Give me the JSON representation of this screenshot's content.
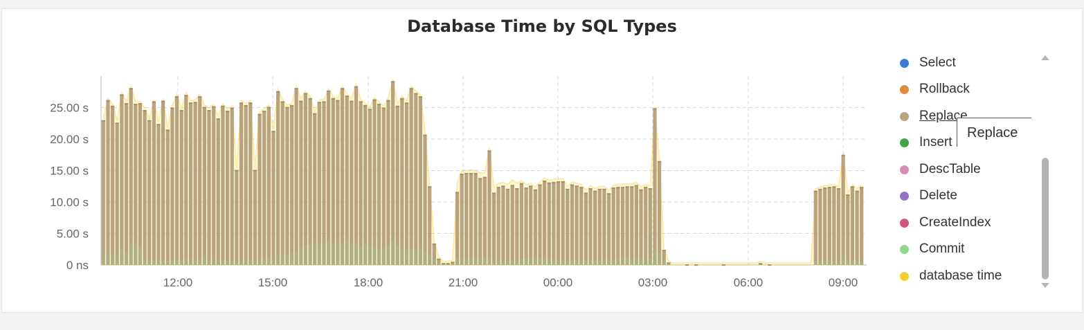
{
  "chart_data": {
    "type": "bar",
    "title": "Database Time by SQL Types",
    "x_tick_labels": [
      "12:00",
      "15:00",
      "18:00",
      "21:00",
      "00:00",
      "03:00",
      "06:00",
      "09:00"
    ],
    "y_tick_labels": [
      "0 ns",
      "5.00 s",
      "10.00 s",
      "15.00 s",
      "20.00 s",
      "25.00 s"
    ],
    "ylim": [
      0,
      30
    ],
    "grid": true,
    "legend_position": "right",
    "series": [
      {
        "name": "Select",
        "color": "#3a7bd5"
      },
      {
        "name": "Rollback",
        "color": "#e08a3c"
      },
      {
        "name": "Replace",
        "color": "#b9a27e"
      },
      {
        "name": "Insert",
        "color": "#44a544"
      },
      {
        "name": "DescTable",
        "color": "#d58fb7"
      },
      {
        "name": "Delete",
        "color": "#9473c2"
      },
      {
        "name": "CreateIndex",
        "color": "#d2557a"
      },
      {
        "name": "Commit",
        "color": "#8fd98f"
      },
      {
        "name": "database time",
        "color": "#f2d12e"
      }
    ],
    "replace_values": [
      23.0,
      26.2,
      25.3,
      22.6,
      27.1,
      25.7,
      28.1,
      25.6,
      25.7,
      24.6,
      23.0,
      26.0,
      22.4,
      26.1,
      21.5,
      25.0,
      26.8,
      24.6,
      27.0,
      25.8,
      25.9,
      26.8,
      25.1,
      24.6,
      25.2,
      23.3,
      25.3,
      24.5,
      25.0,
      15.1,
      25.8,
      25.4,
      25.8,
      15.1,
      24.0,
      24.5,
      25.1,
      21.3,
      27.6,
      26.0,
      25.1,
      25.4,
      28.1,
      26.1,
      27.3,
      26.5,
      24.1,
      25.9,
      26.0,
      27.7,
      26.5,
      26.2,
      28.1,
      26.9,
      26.1,
      28.4,
      26.0,
      25.4,
      24.8,
      26.3,
      25.6,
      25.0,
      26.2,
      29.2,
      25.3,
      26.5,
      25.8,
      28.1,
      27.3,
      26.8,
      20.7,
      12.5,
      3.4,
      1.0,
      0.3,
      0.3,
      0.5,
      11.6,
      14.5,
      14.6,
      14.6,
      14.6,
      13.8,
      14.0,
      18.2,
      11.5,
      12.4,
      12.6,
      12.1,
      12.7,
      12.2,
      13.0,
      12.3,
      12.6,
      12.0,
      12.8,
      13.4,
      13.1,
      13.2,
      13.3,
      13.3,
      12.1,
      12.8,
      12.6,
      12.4,
      11.5,
      12.2,
      11.8,
      12.1,
      12.1,
      11.4,
      12.3,
      12.4,
      12.4,
      12.5,
      12.5,
      12.7,
      12.0,
      12.4,
      12.2,
      24.9,
      16.5,
      2.4,
      0.4,
      0.0,
      0.0,
      0.0,
      0.1,
      0.0,
      0.1,
      0.0,
      0.0,
      0.0,
      0.0,
      0.0,
      0.1,
      0.0,
      0.0,
      0.0,
      0.0,
      0.0,
      0.0,
      0.0,
      0.3,
      0.0,
      0.1,
      0.0,
      0.0,
      0.0,
      0.0,
      0.0,
      0.0,
      0.0,
      0.0,
      0.0,
      11.8,
      12.1,
      12.3,
      12.4,
      12.5,
      12.2,
      17.5,
      11.2,
      12.5,
      11.8,
      12.4
    ],
    "commit_values": [
      1.5,
      1.7,
      1.6,
      1.5,
      2.6,
      2.1,
      3.3,
      3.4,
      3.0,
      0.9,
      0.8,
      0.7,
      0.9,
      0.8,
      0.6,
      0.8,
      1.0,
      0.7,
      1.1,
      1.0,
      0.8,
      0.9,
      1.5,
      0.7,
      0.7,
      0.8,
      0.8,
      0.7,
      0.6,
      0.3,
      0.8,
      0.9,
      0.8,
      0.7,
      1.0,
      1.1,
      1.3,
      0.7,
      1.6,
      1.8,
      1.6,
      2.0,
      2.2,
      2.8,
      3.2,
      3.3,
      3.5,
      3.3,
      3.5,
      4.0,
      3.4,
      3.6,
      3.4,
      4.1,
      3.4,
      3.5,
      2.9,
      3.4,
      3.2,
      2.9,
      2.5,
      2.7,
      3.2,
      3.8,
      3.2,
      2.7,
      2.5,
      2.6,
      2.4,
      2.6,
      2.1,
      1.8,
      1.0,
      0.3,
      0.1,
      0.1,
      0.2,
      1.1,
      1.1,
      1.2,
      1.3,
      1.1,
      1.1,
      1.2,
      1.0,
      0.6,
      0.6,
      0.6,
      0.6,
      0.7,
      0.7,
      1.0,
      1.1,
      1.2,
      1.1,
      1.2,
      1.1,
      1.0,
      1.0,
      0.7,
      0.9,
      0.6,
      0.8,
      0.8,
      0.8,
      0.7,
      0.7,
      0.8,
      0.8,
      1.0,
      0.9,
      0.9,
      1.1,
      1.3,
      1.3,
      0.9,
      1.3,
      0.9,
      0.9,
      1.0,
      2.4,
      2.0,
      0.6,
      0.1,
      0.0,
      0.0,
      0.0,
      0.0,
      0.0,
      0.0,
      0.0,
      0.0,
      0.0,
      0.0,
      0.0,
      0.0,
      0.0,
      0.0,
      0.0,
      0.0,
      0.0,
      0.0,
      0.0,
      0.1,
      0.0,
      0.0,
      0.0,
      0.0,
      0.0,
      0.0,
      0.0,
      0.0,
      0.0,
      0.0,
      0.0,
      0.6,
      0.6,
      0.7,
      0.8,
      0.7,
      0.7,
      1.7,
      0.9,
      0.6,
      0.6,
      0.6
    ],
    "database_time_values": [
      23.3,
      26.5,
      25.6,
      22.9,
      27.4,
      26.0,
      28.4,
      25.9,
      26.0,
      24.9,
      23.3,
      26.3,
      22.7,
      26.4,
      21.8,
      25.3,
      27.1,
      24.9,
      27.3,
      26.1,
      26.2,
      27.1,
      25.4,
      24.9,
      25.5,
      23.6,
      25.6,
      24.8,
      25.3,
      15.4,
      26.1,
      25.7,
      26.1,
      15.4,
      24.3,
      24.8,
      25.4,
      21.6,
      27.9,
      26.3,
      25.4,
      25.7,
      28.4,
      26.4,
      27.6,
      26.8,
      24.4,
      26.2,
      26.3,
      28.0,
      26.8,
      26.5,
      28.4,
      27.2,
      26.4,
      28.7,
      26.3,
      25.7,
      25.1,
      26.6,
      25.9,
      25.3,
      26.5,
      29.5,
      25.6,
      26.8,
      26.1,
      28.4,
      27.6,
      27.1,
      21.0,
      12.8,
      3.7,
      1.3,
      0.6,
      0.6,
      0.8,
      13.0,
      15.0,
      15.0,
      15.1,
      15.0,
      14.6,
      14.6,
      18.6,
      12.4,
      13.0,
      13.1,
      12.8,
      13.5,
      13.0,
      13.4,
      12.7,
      13.0,
      12.4,
      13.2,
      13.8,
      13.5,
      13.6,
      13.7,
      13.7,
      12.5,
      13.2,
      13.0,
      12.8,
      11.9,
      12.6,
      12.2,
      12.5,
      12.5,
      11.8,
      12.7,
      12.8,
      12.8,
      12.9,
      12.9,
      13.1,
      12.4,
      12.8,
      12.6,
      25.2,
      16.8,
      2.7,
      0.6,
      0.3,
      0.3,
      0.3,
      0.4,
      0.3,
      0.4,
      0.3,
      0.3,
      0.3,
      0.3,
      0.3,
      0.4,
      0.3,
      0.3,
      0.3,
      0.3,
      0.3,
      0.3,
      0.3,
      0.6,
      0.3,
      0.4,
      0.3,
      0.3,
      0.3,
      0.3,
      0.3,
      0.3,
      0.3,
      0.3,
      0.3,
      12.1,
      12.4,
      12.6,
      12.7,
      12.8,
      12.5,
      17.8,
      11.5,
      12.8,
      12.1,
      12.7
    ]
  },
  "legend": {
    "hovered": "Replace",
    "tooltip_text": "Replace"
  }
}
